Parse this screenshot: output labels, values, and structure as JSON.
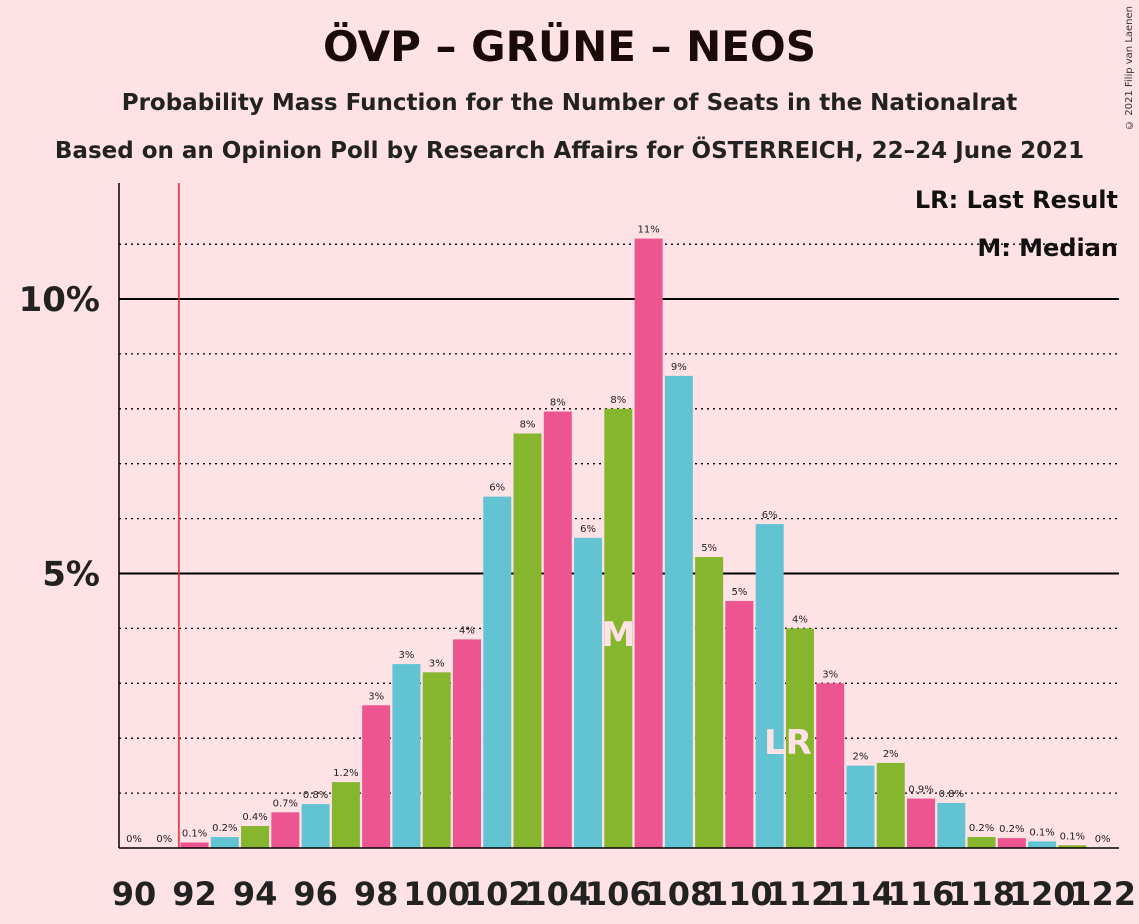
{
  "title": "ÖVP – GRÜNE – NEOS",
  "subtitle_1": "Probability Mass Function for the Number of Seats in the Nationalrat",
  "subtitle_2": "Based on an Opinion Poll by Research Affairs for ÖSTERREICH, 22–24 June 2021",
  "copyright": "© 2021 Filip van Laenen",
  "legend": {
    "lr": "LR: Last Result",
    "m": "M: Median"
  },
  "colors": {
    "background": "#FFE2E5",
    "pink": "#EC5590",
    "blue": "#62C3D2",
    "green": "#86B52E",
    "last_result_line": "#E8242A"
  },
  "chart_data": {
    "type": "bar",
    "ylim": [
      0,
      12
    ],
    "y_major_ticks": [
      {
        "value": 5,
        "label": "5%"
      },
      {
        "value": 10,
        "label": "10%"
      }
    ],
    "grid": "dotted every 1%, solid at 5% and 10%",
    "x_tick_labels": [
      "90",
      "92",
      "94",
      "96",
      "98",
      "100",
      "102",
      "104",
      "106",
      "108",
      "110",
      "112",
      "114",
      "116",
      "118",
      "120",
      "122"
    ],
    "last_result_seat": 92,
    "median_seat": 106,
    "lr_label": "LR",
    "median_label": "M",
    "bars": [
      {
        "seat": 90,
        "value": 0,
        "label": "0%",
        "color": "pink"
      },
      {
        "seat": 91,
        "value": 0,
        "label": "0%",
        "color": "blue"
      },
      {
        "seat": 92,
        "value": 0.1,
        "label": "0.1%",
        "color": "pink"
      },
      {
        "seat": 93,
        "value": 0.2,
        "label": "0.2%",
        "color": "blue"
      },
      {
        "seat": 94,
        "value": 0.4,
        "label": "0.4%",
        "color": "green"
      },
      {
        "seat": 95,
        "value": 0.65,
        "label": "0.7%",
        "color": "pink"
      },
      {
        "seat": 96,
        "value": 0.8,
        "label": "0.8%",
        "color": "blue"
      },
      {
        "seat": 97,
        "value": 1.2,
        "label": "1.2%",
        "color": "green"
      },
      {
        "seat": 98,
        "value": 2.6,
        "label": "3%",
        "color": "pink"
      },
      {
        "seat": 99,
        "value": 3.35,
        "label": "3%",
        "color": "blue"
      },
      {
        "seat": 100,
        "value": 3.2,
        "label": "3%",
        "color": "green"
      },
      {
        "seat": 101,
        "value": 3.8,
        "label": "4%",
        "color": "pink"
      },
      {
        "seat": 102,
        "value": 6.4,
        "label": "6%",
        "color": "blue"
      },
      {
        "seat": 103,
        "value": 7.55,
        "label": "8%",
        "color": "green"
      },
      {
        "seat": 104,
        "value": 7.95,
        "label": "8%",
        "color": "pink"
      },
      {
        "seat": 105,
        "value": 5.65,
        "label": "6%",
        "color": "blue"
      },
      {
        "seat": 106,
        "value": 8.0,
        "label": "8%",
        "color": "green"
      },
      {
        "seat": 107,
        "value": 11.1,
        "label": "11%",
        "color": "pink"
      },
      {
        "seat": 108,
        "value": 8.6,
        "label": "9%",
        "color": "blue"
      },
      {
        "seat": 109,
        "value": 5.3,
        "label": "5%",
        "color": "green"
      },
      {
        "seat": 110,
        "value": 4.5,
        "label": "5%",
        "color": "pink"
      },
      {
        "seat": 111,
        "value": 5.9,
        "label": "6%",
        "color": "blue"
      },
      {
        "seat": 112,
        "value": 4.0,
        "label": "4%",
        "color": "green"
      },
      {
        "seat": 113,
        "value": 3.0,
        "label": "3%",
        "color": "pink"
      },
      {
        "seat": 114,
        "value": 1.5,
        "label": "2%",
        "color": "blue"
      },
      {
        "seat": 115,
        "value": 1.55,
        "label": "2%",
        "color": "green"
      },
      {
        "seat": 116,
        "value": 0.9,
        "label": "0.9%",
        "color": "pink"
      },
      {
        "seat": 117,
        "value": 0.82,
        "label": "0.8%",
        "color": "blue"
      },
      {
        "seat": 118,
        "value": 0.2,
        "label": "0.2%",
        "color": "green"
      },
      {
        "seat": 119,
        "value": 0.18,
        "label": "0.2%",
        "color": "pink"
      },
      {
        "seat": 120,
        "value": 0.12,
        "label": "0.1%",
        "color": "blue"
      },
      {
        "seat": 121,
        "value": 0.05,
        "label": "0.1%",
        "color": "green"
      },
      {
        "seat": 122,
        "value": 0,
        "label": "0%",
        "color": "pink"
      }
    ]
  }
}
